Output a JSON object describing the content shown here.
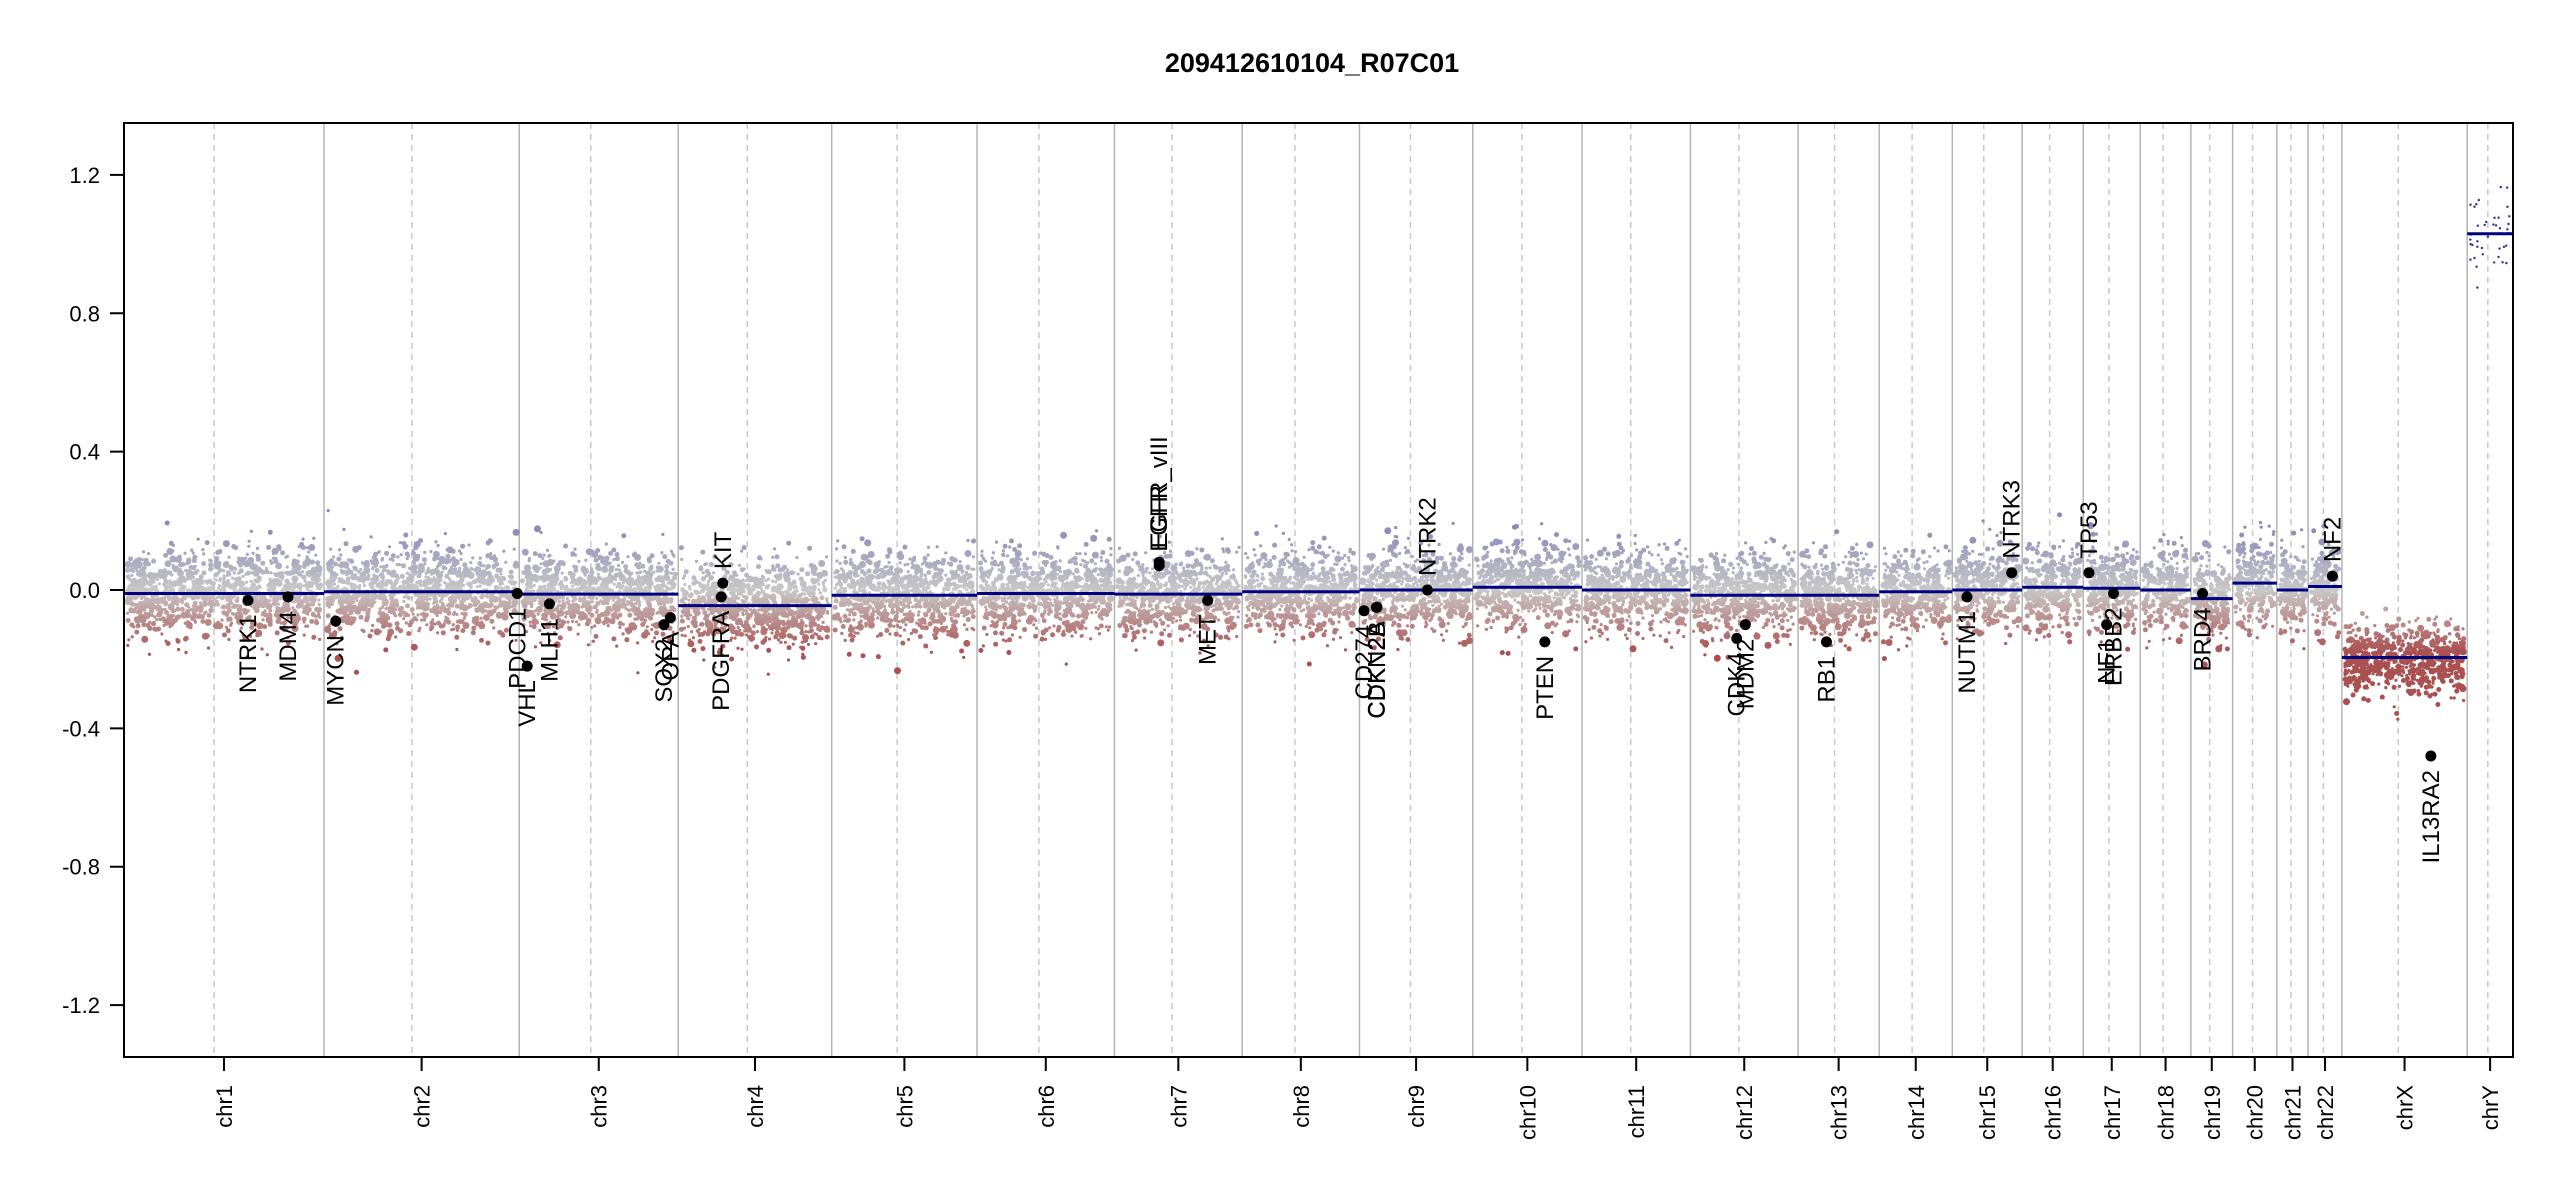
{
  "chart_data": {
    "type": "scatter",
    "title": "209412610104_R07C01",
    "ylim": [
      -1.35,
      1.35
    ],
    "yticks": [
      1.2,
      0.8,
      0.4,
      0.0,
      -0.4,
      -0.8,
      -1.2
    ],
    "ytick_labels": [
      "1.2",
      "0.8",
      "0.4",
      "0.0",
      "-0.4",
      "-0.8",
      "-1.2"
    ],
    "chromosomes": [
      {
        "name": "chr1",
        "size": 249
      },
      {
        "name": "chr2",
        "size": 243
      },
      {
        "name": "chr3",
        "size": 198
      },
      {
        "name": "chr4",
        "size": 191
      },
      {
        "name": "chr5",
        "size": 181
      },
      {
        "name": "chr6",
        "size": 171
      },
      {
        "name": "chr7",
        "size": 159
      },
      {
        "name": "chr8",
        "size": 146
      },
      {
        "name": "chr9",
        "size": 141
      },
      {
        "name": "chr10",
        "size": 136
      },
      {
        "name": "chr11",
        "size": 135
      },
      {
        "name": "chr12",
        "size": 134
      },
      {
        "name": "chr13",
        "size": 101
      },
      {
        "name": "chr14",
        "size": 91
      },
      {
        "name": "chr15",
        "size": 87
      },
      {
        "name": "chr16",
        "size": 76
      },
      {
        "name": "chr17",
        "size": 71
      },
      {
        "name": "chr18",
        "size": 63
      },
      {
        "name": "chr19",
        "size": 52
      },
      {
        "name": "chr20",
        "size": 55
      },
      {
        "name": "chr21",
        "size": 39
      },
      {
        "name": "chr22",
        "size": 42
      },
      {
        "name": "chrX",
        "size": 156
      },
      {
        "name": "chrY",
        "size": 57
      }
    ],
    "segments": [
      {
        "chr": "chrX",
        "value": -0.195
      },
      {
        "chr": "chrY",
        "value": 1.03
      }
    ],
    "segment_values": {
      "chr1": -0.01,
      "chr2": -0.005,
      "chr3": -0.012,
      "chr4": -0.045,
      "chr5": -0.015,
      "chr6": -0.01,
      "chr7": -0.012,
      "chr8": -0.005,
      "chr9": 0.0,
      "chr10": 0.008,
      "chr11": 0.0,
      "chr12": -0.015,
      "chr13": -0.015,
      "chr14": -0.005,
      "chr15": 0.0,
      "chr16": 0.008,
      "chr17": 0.005,
      "chr18": 0.0,
      "chr19": -0.025,
      "chr20": 0.02,
      "chr21": 0.0,
      "chr22": 0.01
    },
    "genes": [
      {
        "name": "NTRK1",
        "chr": "chr1",
        "pos": 0.62,
        "value": -0.03
      },
      {
        "name": "MDM4",
        "chr": "chr1",
        "pos": 0.82,
        "value": -0.02
      },
      {
        "name": "MYCN",
        "chr": "chr2",
        "pos": 0.06,
        "value": -0.09
      },
      {
        "name": "VHL",
        "chr": "chr3",
        "pos": 0.05,
        "value": -0.22
      },
      {
        "name": "PDCD1",
        "chr": "chr2",
        "pos": 0.99,
        "value": -0.01
      },
      {
        "name": "MLH1",
        "chr": "chr3",
        "pos": 0.19,
        "value": -0.04
      },
      {
        "name": "SOX2",
        "chr": "chr3",
        "pos": 0.91,
        "value": -0.1
      },
      {
        "name": "OPA",
        "chr": "chr3",
        "pos": 0.95,
        "value": -0.08
      },
      {
        "name": "PDGFRA",
        "chr": "chr4",
        "pos": 0.28,
        "value": -0.02
      },
      {
        "name": "KIT",
        "chr": "chr4",
        "pos": 0.29,
        "value": 0.02
      },
      {
        "name": "EGFR",
        "chr": "chr7",
        "pos": 0.35,
        "value": 0.07
      },
      {
        "name": "EGFR_vIII",
        "chr": "chr7",
        "pos": 0.35,
        "value": 0.08
      },
      {
        "name": "MET",
        "chr": "chr7",
        "pos": 0.73,
        "value": -0.03
      },
      {
        "name": "CD274",
        "chr": "chr9",
        "pos": 0.04,
        "value": -0.06
      },
      {
        "name": "CDKN2A",
        "chr": "chr9",
        "pos": 0.15,
        "value": -0.05
      },
      {
        "name": "CDKN2B",
        "chr": "chr9",
        "pos": 0.155,
        "value": -0.05
      },
      {
        "name": "NTRK2",
        "chr": "chr9",
        "pos": 0.6,
        "value": 0.0
      },
      {
        "name": "PTEN",
        "chr": "chr10",
        "pos": 0.66,
        "value": -0.15
      },
      {
        "name": "CDK4",
        "chr": "chr12",
        "pos": 0.43,
        "value": -0.14
      },
      {
        "name": "MDM2",
        "chr": "chr12",
        "pos": 0.51,
        "value": -0.1
      },
      {
        "name": "RB1",
        "chr": "chr13",
        "pos": 0.35,
        "value": -0.15
      },
      {
        "name": "NUTM1",
        "chr": "chr15",
        "pos": 0.21,
        "value": -0.02
      },
      {
        "name": "NTRK3",
        "chr": "chr15",
        "pos": 0.85,
        "value": 0.05
      },
      {
        "name": "TP53",
        "chr": "chr17",
        "pos": 0.1,
        "value": 0.05
      },
      {
        "name": "NF1",
        "chr": "chr17",
        "pos": 0.41,
        "value": -0.1
      },
      {
        "name": "ERBB2",
        "chr": "chr17",
        "pos": 0.53,
        "value": -0.01
      },
      {
        "name": "BRD4",
        "chr": "chr19",
        "pos": 0.28,
        "value": -0.01
      },
      {
        "name": "NF2",
        "chr": "chr22",
        "pos": 0.72,
        "value": 0.04
      },
      {
        "name": "IL13RA2",
        "chr": "chrX",
        "pos": 0.71,
        "value": -0.48
      }
    ],
    "colors": {
      "positive": "#8c8cb8",
      "neutral": "#c8c8c8",
      "negative": "#a03c3c",
      "segment": "#000080",
      "gene_point": "#000000"
    },
    "grid": false,
    "legend": "none"
  }
}
